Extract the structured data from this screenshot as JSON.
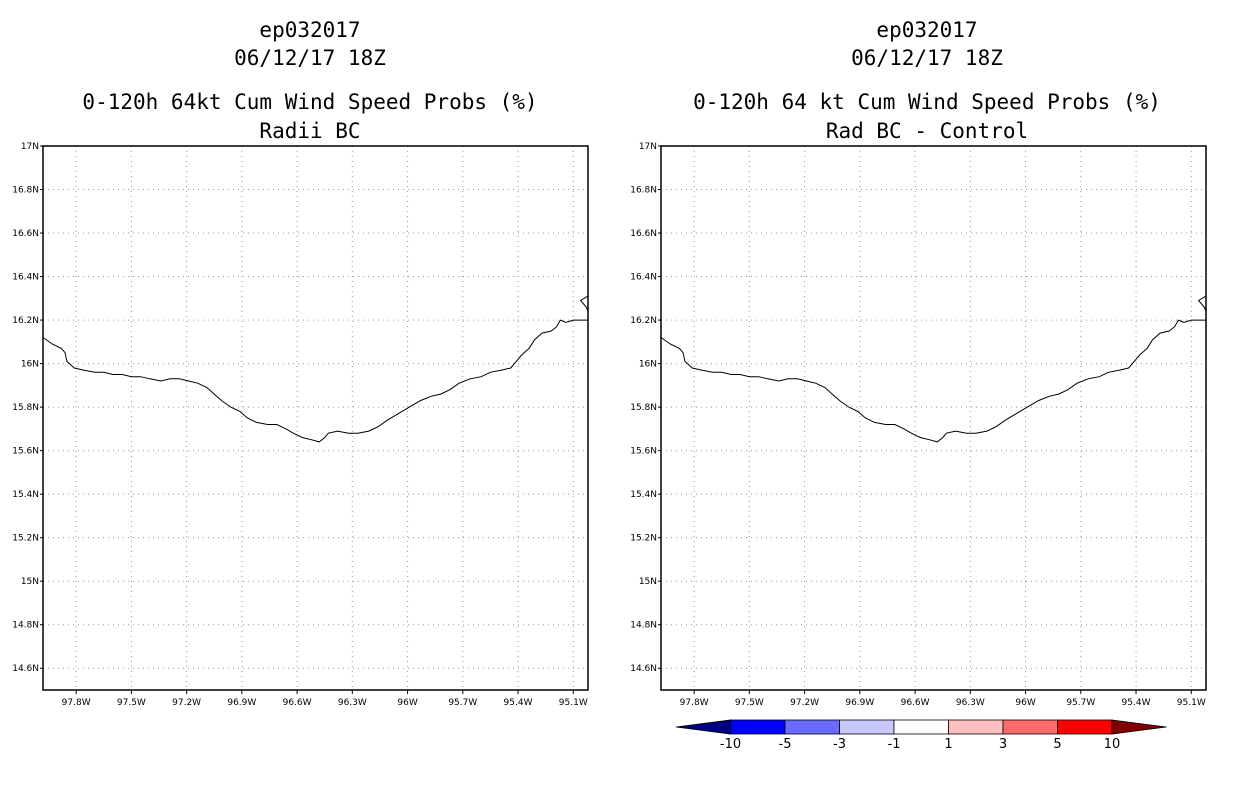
{
  "left_panel": {
    "title_line1": "ep032017",
    "title_line2": "06/12/17 18Z",
    "title_line3": "0-120h 64kt Cum Wind Speed Probs (%)",
    "title_line4": "Radii BC"
  },
  "right_panel": {
    "title_line1": "ep032017",
    "title_line2": "06/12/17 18Z",
    "title_line3": "0-120h 64 kt Cum Wind Speed Probs (%)",
    "title_line4": "Rad BC - Control"
  },
  "map": {
    "lat_labels": [
      "17N",
      "16.8N",
      "16.6N",
      "16.4N",
      "16.2N",
      "16N",
      "15.8N",
      "15.6N",
      "15.4N",
      "15.2N",
      "15N",
      "14.8N",
      "14.6N"
    ],
    "lon_labels": [
      "97.8W",
      "97.5W",
      "97.2W",
      "96.9W",
      "96.6W",
      "96.3W",
      "96W",
      "95.7W",
      "95.4W",
      "95.1W"
    ],
    "lat_range": [
      14.5,
      17.0
    ],
    "lon_range": [
      -97.98,
      -95.02
    ],
    "coastline": [
      [
        -97.98,
        16.12
      ],
      [
        -97.93,
        16.09
      ],
      [
        -97.88,
        16.07
      ],
      [
        -97.86,
        16.05
      ],
      [
        -97.85,
        16.01
      ],
      [
        -97.81,
        15.98
      ],
      [
        -97.76,
        15.97
      ],
      [
        -97.7,
        15.96
      ],
      [
        -97.65,
        15.96
      ],
      [
        -97.6,
        15.95
      ],
      [
        -97.55,
        15.95
      ],
      [
        -97.5,
        15.94
      ],
      [
        -97.45,
        15.94
      ],
      [
        -97.4,
        15.93
      ],
      [
        -97.34,
        15.92
      ],
      [
        -97.29,
        15.93
      ],
      [
        -97.24,
        15.93
      ],
      [
        -97.19,
        15.92
      ],
      [
        -97.14,
        15.91
      ],
      [
        -97.09,
        15.89
      ],
      [
        -97.05,
        15.86
      ],
      [
        -97.01,
        15.83
      ],
      [
        -96.96,
        15.8
      ],
      [
        -96.91,
        15.78
      ],
      [
        -96.87,
        15.75
      ],
      [
        -96.82,
        15.73
      ],
      [
        -96.76,
        15.72
      ],
      [
        -96.71,
        15.72
      ],
      [
        -96.66,
        15.7
      ],
      [
        -96.62,
        15.68
      ],
      [
        -96.57,
        15.66
      ],
      [
        -96.52,
        15.65
      ],
      [
        -96.48,
        15.64
      ],
      [
        -96.45,
        15.66
      ],
      [
        -96.43,
        15.68
      ],
      [
        -96.38,
        15.69
      ],
      [
        -96.32,
        15.68
      ],
      [
        -96.27,
        15.68
      ],
      [
        -96.21,
        15.69
      ],
      [
        -96.16,
        15.71
      ],
      [
        -96.11,
        15.74
      ],
      [
        -96.05,
        15.77
      ],
      [
        -95.99,
        15.8
      ],
      [
        -95.93,
        15.83
      ],
      [
        -95.87,
        15.85
      ],
      [
        -95.82,
        15.86
      ],
      [
        -95.77,
        15.88
      ],
      [
        -95.72,
        15.91
      ],
      [
        -95.66,
        15.93
      ],
      [
        -95.6,
        15.94
      ],
      [
        -95.55,
        15.96
      ],
      [
        -95.49,
        15.97
      ],
      [
        -95.44,
        15.98
      ],
      [
        -95.41,
        16.01
      ],
      [
        -95.38,
        16.04
      ],
      [
        -95.34,
        16.07
      ],
      [
        -95.31,
        16.11
      ],
      [
        -95.27,
        16.14
      ],
      [
        -95.22,
        16.15
      ],
      [
        -95.19,
        16.17
      ],
      [
        -95.17,
        16.2
      ],
      [
        -95.14,
        16.19
      ],
      [
        -95.1,
        16.2
      ],
      [
        -95.02,
        16.2
      ]
    ],
    "coast_notch": [
      [
        -95.02,
        16.31
      ],
      [
        -95.06,
        16.29
      ],
      [
        -95.03,
        16.26
      ],
      [
        -95.02,
        16.24
      ]
    ]
  },
  "colorbar": {
    "labels": [
      "-10",
      "-5",
      "-3",
      "-1",
      "1",
      "3",
      "5",
      "10"
    ],
    "colors": [
      "#000080",
      "#0000ff",
      "#6b6bff",
      "#c8c8ff",
      "#ffffff",
      "#ffbfbf",
      "#ff6b6b",
      "#ff0000",
      "#800000"
    ]
  }
}
